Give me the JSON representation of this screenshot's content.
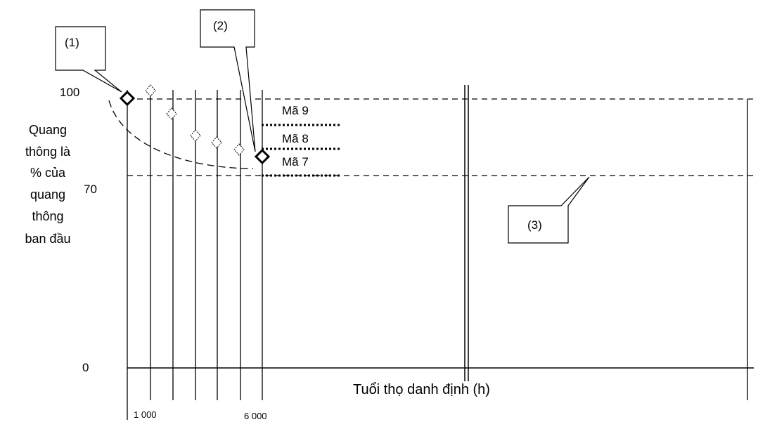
{
  "y_axis": {
    "title_lines": [
      "Quang",
      "thông là",
      "% của",
      "quang",
      "thông",
      "ban đầu"
    ],
    "ticks": [
      "100",
      "70",
      "0"
    ]
  },
  "x_axis": {
    "title": "Tuổi thọ danh định (h)",
    "ticks": [
      "1 000",
      "6 000"
    ]
  },
  "callouts": {
    "c1": "(1)",
    "c2": "(2)",
    "c3": "(3)"
  },
  "codes": {
    "ma9": "Mã 9",
    "ma8": "Mã 8",
    "ma7": "Mã 7"
  },
  "colors": {
    "line": "#000000",
    "background": "#ffffff"
  }
}
